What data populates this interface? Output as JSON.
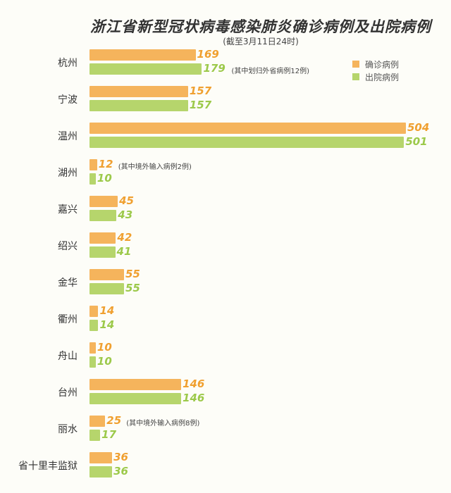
{
  "chart_data": {
    "type": "bar",
    "orientation": "horizontal",
    "title": "浙江省新型冠状病毒感染肺炎确诊病例及出院病例",
    "subtitle": "(截至3月11日24时)",
    "legend_position": "top-right",
    "grid": false,
    "categories": [
      "杭州",
      "宁波",
      "温州",
      "湖州",
      "嘉兴",
      "绍兴",
      "金华",
      "衢州",
      "舟山",
      "台州",
      "丽水",
      "省十里丰监狱"
    ],
    "series": [
      {
        "name": "确诊病例",
        "color": "#f5b45c",
        "values": [
          169,
          157,
          504,
          12,
          45,
          42,
          55,
          14,
          10,
          146,
          25,
          36
        ]
      },
      {
        "name": "出院病例",
        "color": "#b6d56c",
        "values": [
          179,
          157,
          501,
          10,
          43,
          41,
          55,
          14,
          10,
          146,
          17,
          36
        ]
      }
    ],
    "annotations": [
      {
        "category": "杭州",
        "series": "出院病例",
        "text": "(其中划归外省病例12例)"
      },
      {
        "category": "湖州",
        "series": "确诊病例",
        "text": "(其中境外输入病例2例)"
      },
      {
        "category": "丽水",
        "series": "确诊病例",
        "text": "(其中境外输入病例8例)"
      }
    ]
  }
}
